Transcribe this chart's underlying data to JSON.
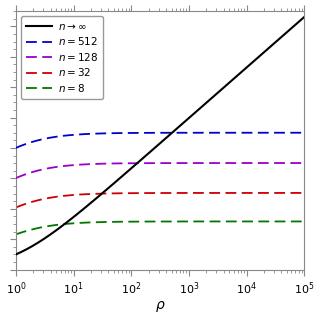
{
  "title": "",
  "xlabel": "\\rho",
  "ylabel": "",
  "n_values": [
    512,
    128,
    32,
    8
  ],
  "line_colors_n": [
    "#0000cc",
    "#9900cc",
    "#cc0000",
    "#007700"
  ],
  "line_color_inf": "black",
  "background_color": "#ffffff",
  "figsize": [
    3.2,
    3.2
  ],
  "dpi": 100,
  "xlim": [
    1.0,
    100000.0
  ],
  "ylim": [
    0,
    17
  ]
}
